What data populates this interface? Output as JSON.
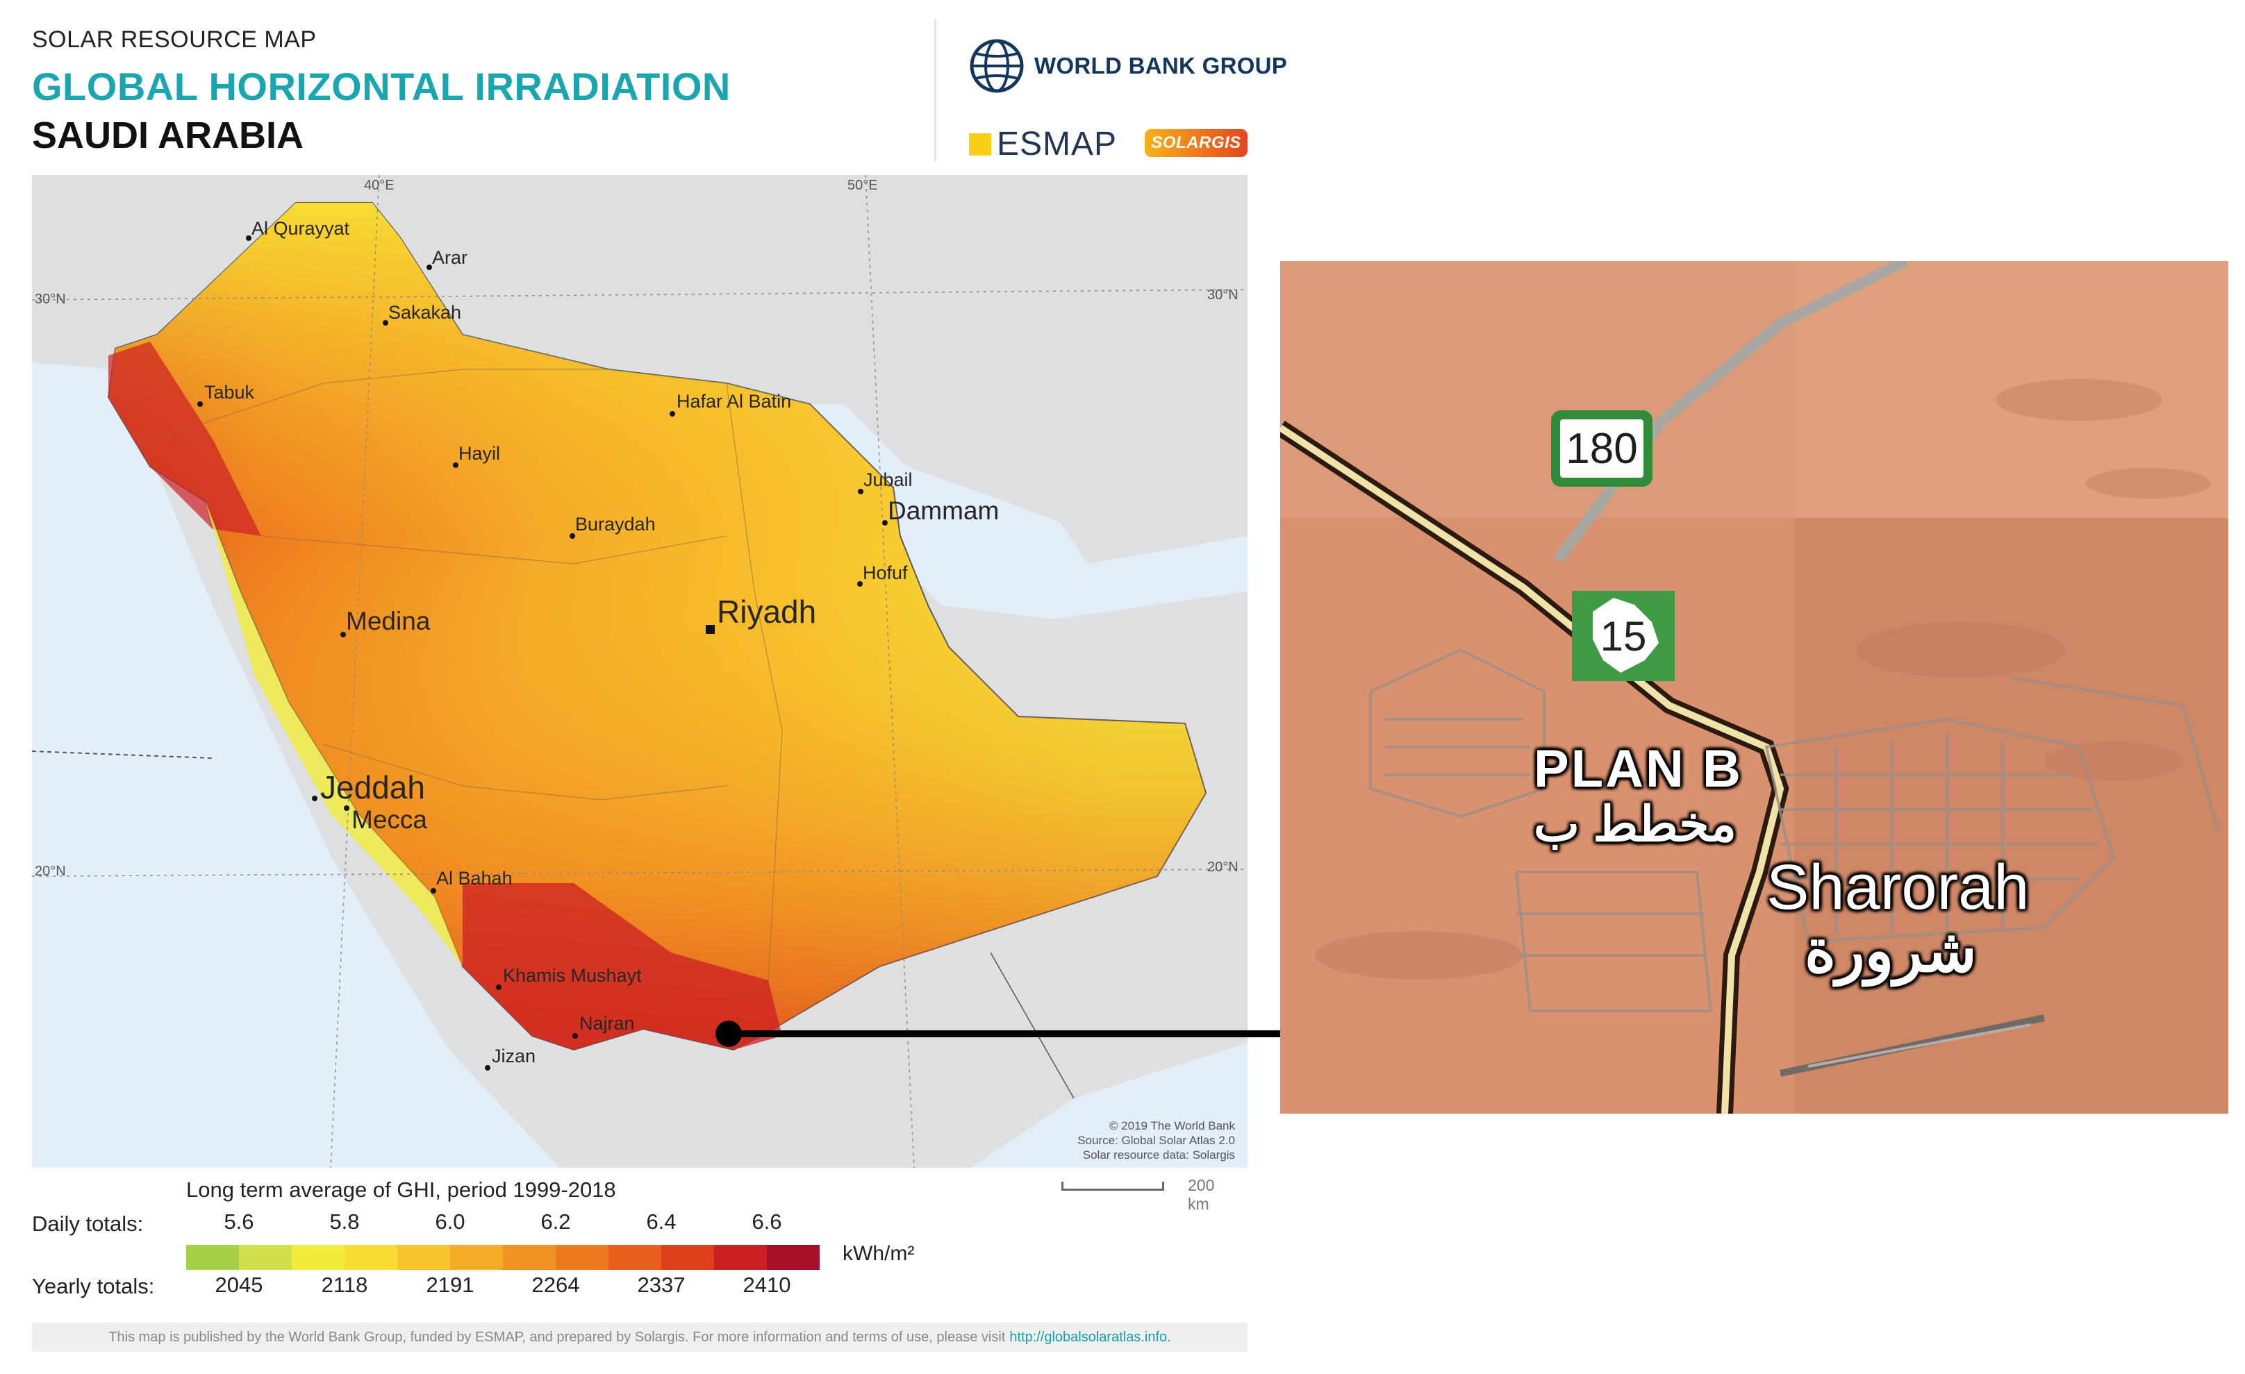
{
  "header": {
    "subtitle": "SOLAR RESOURCE MAP",
    "title": "GLOBAL HORIZONTAL IRRADIATION",
    "country": "SAUDI ARABIA"
  },
  "logos": {
    "world_bank": "WORLD BANK GROUP",
    "esmap": "ESMAP",
    "solargis": "SOLARGIS"
  },
  "map": {
    "graticule": {
      "lon_labels": [
        "40°E",
        "50°E"
      ],
      "lat_labels": [
        "30°N",
        "20°N"
      ]
    },
    "cities_small": [
      "Al Qurayyat",
      "Arar",
      "Sakakah",
      "Tabuk",
      "Hafar Al Batin",
      "Hayil",
      "Jubail",
      "Buraydah",
      "Hofuf",
      "Al Bahah",
      "Khamis Mushayt",
      "Najran",
      "Jizan"
    ],
    "cities_medium": [
      "Dammam",
      "Medina",
      "Mecca"
    ],
    "cities_large": [
      "Riyadh",
      "Jeddah"
    ],
    "credit": [
      "© 2019 The World Bank",
      "Source: Global Solar Atlas 2.0",
      "Solar resource data: Solargis"
    ]
  },
  "legend": {
    "caption": "Long term average of GHI, period 1999-2018",
    "daily_label": "Daily totals:",
    "yearly_label": "Yearly totals:",
    "daily_ticks": [
      "5.6",
      "5.8",
      "6.0",
      "6.2",
      "6.4",
      "6.6"
    ],
    "yearly_ticks": [
      "2045",
      "2118",
      "2191",
      "2264",
      "2337",
      "2410"
    ],
    "unit": "kWh/m²",
    "colors": [
      "#a6d04a",
      "#cfe04a",
      "#f2ec3c",
      "#f8dc33",
      "#f8c42d",
      "#f5aa28",
      "#f39323",
      "#ee7a1e",
      "#e85e1b",
      "#dd3f1a",
      "#cc1f23",
      "#a8102a"
    ],
    "scale_label": "200 km"
  },
  "footer": {
    "text": "This map is published by the World Bank Group, funded by ESMAP, and prepared by Solargis. For more information and terms of use, please visit",
    "url": "http://globalsolaratlas.info."
  },
  "inset": {
    "road_180": "180",
    "road_15": "15",
    "label_planb": "PLAN B",
    "label_planb_ar": "مخطط ب",
    "label_city": "Sharorah",
    "label_city_ar": "شرورة"
  }
}
